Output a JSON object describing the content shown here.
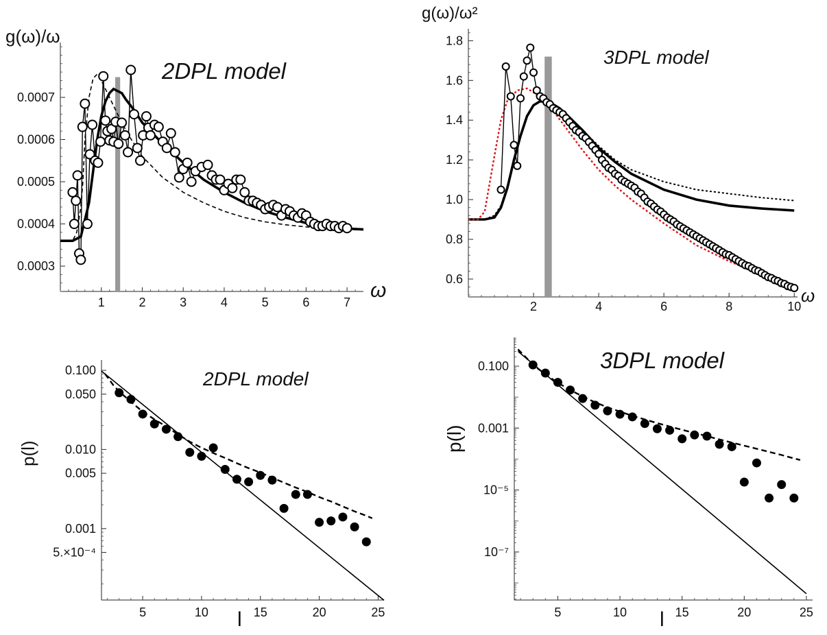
{
  "chart_data": [
    {
      "id": "tl",
      "type": "scatter",
      "title": "2DPL model",
      "xlabel": "ω",
      "ylabel": "g(ω)/ω",
      "xlim": [
        0,
        7.4
      ],
      "ylim": [
        0.00024,
        0.00083
      ],
      "xticks": [
        1,
        2,
        3,
        4,
        5,
        6,
        7
      ],
      "xtick_labels": [
        "1",
        "2",
        "3",
        "4",
        "5",
        "6",
        "7"
      ],
      "yticks": [
        0.0003,
        0.0004,
        0.0005,
        0.0006,
        0.0007
      ],
      "ytick_labels": [
        "0.0003",
        "0.0004",
        "0.0005",
        "0.0006",
        "0.0007"
      ],
      "vband": {
        "x": 1.4,
        "width": 0.12,
        "color": "#999999"
      },
      "series": [
        {
          "style": "dashed-thin",
          "x": [
            0,
            0.3,
            0.4,
            0.5,
            0.55,
            0.6,
            0.7,
            0.8,
            0.9,
            1.0,
            1.1,
            1.2,
            1.3,
            1.5,
            1.7,
            2.0,
            2.5,
            3.0,
            3.5,
            4.0,
            4.5,
            5.0,
            5.5,
            6.0,
            6.5,
            7.0,
            7.4
          ],
          "y": [
            0.00036,
            0.00036,
            0.00038,
            0.00044,
            0.0005,
            0.0006,
            0.0007,
            0.000745,
            0.000755,
            0.00074,
            0.00072,
            0.0007,
            0.00068,
            0.00064,
            0.000605,
            0.00056,
            0.00051,
            0.000475,
            0.00045,
            0.00043,
            0.000415,
            0.000405,
            0.000398,
            0.000393,
            0.00039,
            0.000387,
            0.000386
          ]
        },
        {
          "style": "solid-thick",
          "x": [
            0,
            0.3,
            0.5,
            0.7,
            0.9,
            1.0,
            1.1,
            1.2,
            1.3,
            1.4,
            1.5,
            1.6,
            1.8,
            2.0,
            2.5,
            3.0,
            3.5,
            4.0,
            4.5,
            5.0,
            5.5,
            6.0,
            6.5,
            7.0,
            7.4
          ],
          "y": [
            0.00036,
            0.00036,
            0.00037,
            0.00045,
            0.0006,
            0.000655,
            0.00069,
            0.00071,
            0.00072,
            0.000715,
            0.00071,
            0.000695,
            0.00067,
            0.00064,
            0.00059,
            0.000545,
            0.000505,
            0.000475,
            0.00045,
            0.00043,
            0.000415,
            0.000402,
            0.000394,
            0.000389,
            0.000387
          ]
        },
        {
          "style": "circles-joined",
          "x": [
            0.3,
            0.34,
            0.38,
            0.42,
            0.46,
            0.5,
            0.54,
            0.6,
            0.66,
            0.72,
            0.78,
            0.85,
            0.92,
            0.98,
            1.05,
            1.1,
            1.15,
            1.2,
            1.25,
            1.3,
            1.35,
            1.42,
            1.5,
            1.58,
            1.65,
            1.72,
            1.8,
            1.88,
            1.95,
            2.02,
            2.1,
            2.15,
            2.2,
            2.3,
            2.4,
            2.5,
            2.6,
            2.7,
            2.8,
            2.9,
            3.0,
            3.1,
            3.2,
            3.3,
            3.45,
            3.6,
            3.7,
            3.8,
            3.9,
            4.0,
            4.1,
            4.2,
            4.3,
            4.4,
            4.5,
            4.6,
            4.7,
            4.8,
            4.9,
            5.0,
            5.1,
            5.2,
            5.3,
            5.4,
            5.5,
            5.6,
            5.7,
            5.8,
            5.9,
            6.0,
            6.1,
            6.2,
            6.3,
            6.4,
            6.5,
            6.6,
            6.7,
            6.8,
            6.9,
            7.0
          ],
          "y": [
            0.000475,
            0.0004,
            0.000455,
            0.000515,
            0.00033,
            0.000315,
            0.00063,
            0.000685,
            0.0004,
            0.000565,
            0.000635,
            0.00055,
            0.000545,
            0.000595,
            0.00075,
            0.000645,
            0.00062,
            0.000598,
            0.000625,
            0.000595,
            0.000642,
            0.00059,
            0.00064,
            0.00061,
            0.00057,
            0.000765,
            0.00066,
            0.00058,
            0.00055,
            0.00061,
            0.000655,
            0.000628,
            0.00061,
            0.000635,
            0.00063,
            0.000595,
            0.00058,
            0.000615,
            0.00057,
            0.00051,
            0.00053,
            0.000545,
            0.0005,
            0.000525,
            0.000535,
            0.00054,
            0.000515,
            0.000505,
            0.000505,
            0.00048,
            0.000495,
            0.000485,
            0.000505,
            0.000505,
            0.000475,
            0.000455,
            0.000455,
            0.00045,
            0.000445,
            0.000435,
            0.00044,
            0.000445,
            0.00044,
            0.00042,
            0.000435,
            0.00043,
            0.00042,
            0.000415,
            0.000425,
            0.00042,
            0.000405,
            0.0004,
            0.000395,
            0.000395,
            0.0004,
            0.000395,
            0.000395,
            0.00039,
            0.000395,
            0.00039
          ]
        }
      ]
    },
    {
      "id": "tr",
      "type": "scatter",
      "title": "3DPL model",
      "xlabel": "ω",
      "ylabel": "g(ω)/ω²",
      "xlim": [
        0,
        10.1
      ],
      "ylim": [
        0.51,
        1.86
      ],
      "xticks": [
        2,
        4,
        6,
        8,
        10
      ],
      "xtick_labels": [
        "2",
        "4",
        "6",
        "8",
        "10"
      ],
      "yticks": [
        0.6,
        0.8,
        1.0,
        1.2,
        1.4,
        1.6,
        1.8
      ],
      "ytick_labels": [
        "0.6",
        "0.8",
        "1.0",
        "1.2",
        "1.4",
        "1.6",
        "1.8"
      ],
      "vband": {
        "x": 2.45,
        "width": 0.22,
        "color": "#999999"
      },
      "series": [
        {
          "style": "dotted-black",
          "x": [
            0,
            0.5,
            0.8,
            1.0,
            1.2,
            1.4,
            1.6,
            1.8,
            2.0,
            2.2,
            2.5,
            2.8,
            3.0,
            3.5,
            4.0,
            4.5,
            5.0,
            6.0,
            7.0,
            8.0,
            9.0,
            10.0
          ],
          "y": [
            0.9,
            0.9,
            0.92,
            0.97,
            1.07,
            1.2,
            1.32,
            1.42,
            1.475,
            1.495,
            1.49,
            1.45,
            1.42,
            1.35,
            1.27,
            1.2,
            1.15,
            1.09,
            1.05,
            1.03,
            1.01,
            0.995
          ]
        },
        {
          "style": "solid-thick",
          "x": [
            0,
            0.5,
            0.8,
            1.0,
            1.2,
            1.4,
            1.6,
            1.8,
            2.0,
            2.2,
            2.5,
            2.8,
            3.0,
            3.5,
            4.0,
            4.5,
            5.0,
            6.0,
            7.0,
            8.0,
            9.0,
            10.0
          ],
          "y": [
            0.9,
            0.9,
            0.91,
            0.96,
            1.06,
            1.2,
            1.32,
            1.42,
            1.475,
            1.495,
            1.49,
            1.46,
            1.43,
            1.35,
            1.26,
            1.19,
            1.13,
            1.05,
            1.0,
            0.97,
            0.955,
            0.945
          ]
        },
        {
          "style": "dotted-red",
          "x": [
            0,
            0.3,
            0.5,
            0.8,
            1.0,
            1.2,
            1.5,
            1.8,
            2.0,
            2.5,
            3.0,
            3.5,
            4.0,
            4.5,
            5.0,
            6.0,
            7.0,
            8.0,
            9.0,
            10.0
          ],
          "y": [
            0.9,
            0.9,
            0.94,
            1.22,
            1.4,
            1.5,
            1.55,
            1.56,
            1.54,
            1.47,
            1.36,
            1.25,
            1.15,
            1.07,
            1.0,
            0.88,
            0.77,
            0.69,
            0.62,
            0.555
          ]
        },
        {
          "style": "circles-joined",
          "x": [
            1.0,
            1.15,
            1.3,
            1.4,
            1.5,
            1.6,
            1.7,
            1.8,
            1.9,
            2.0,
            2.1,
            2.2,
            2.3,
            2.4,
            2.5,
            2.6,
            2.7,
            2.8,
            2.9,
            3.0,
            3.1,
            3.2,
            3.3,
            3.4,
            3.5,
            3.6,
            3.7,
            3.8,
            3.9,
            4.0,
            4.1,
            4.2,
            4.3,
            4.4,
            4.5,
            4.6,
            4.7,
            4.8,
            4.9,
            5.0,
            5.1,
            5.2,
            5.3,
            5.4,
            5.5,
            5.6,
            5.7,
            5.8,
            5.9,
            6.0,
            6.1,
            6.2,
            6.3,
            6.4,
            6.5,
            6.6,
            6.7,
            6.8,
            6.9,
            7.0,
            7.1,
            7.2,
            7.3,
            7.4,
            7.5,
            7.6,
            7.7,
            7.8,
            7.9,
            8.0,
            8.1,
            8.2,
            8.3,
            8.4,
            8.5,
            8.6,
            8.7,
            8.8,
            8.9,
            9.0,
            9.1,
            9.2,
            9.3,
            9.4,
            9.5,
            9.6,
            9.7,
            9.8,
            9.9,
            10.0
          ],
          "y": [
            1.05,
            1.67,
            1.52,
            1.275,
            1.17,
            1.51,
            1.62,
            1.7,
            1.765,
            1.64,
            1.55,
            1.52,
            1.51,
            1.49,
            1.48,
            1.46,
            1.45,
            1.44,
            1.43,
            1.41,
            1.39,
            1.37,
            1.35,
            1.34,
            1.32,
            1.31,
            1.29,
            1.27,
            1.25,
            1.23,
            1.2,
            1.18,
            1.16,
            1.15,
            1.13,
            1.12,
            1.1,
            1.09,
            1.08,
            1.07,
            1.06,
            1.04,
            1.03,
            1.01,
            0.99,
            0.98,
            0.965,
            0.95,
            0.94,
            0.925,
            0.91,
            0.9,
            0.89,
            0.875,
            0.865,
            0.855,
            0.845,
            0.835,
            0.825,
            0.815,
            0.805,
            0.795,
            0.785,
            0.775,
            0.765,
            0.755,
            0.745,
            0.735,
            0.725,
            0.72,
            0.71,
            0.7,
            0.69,
            0.68,
            0.67,
            0.665,
            0.655,
            0.645,
            0.64,
            0.63,
            0.62,
            0.61,
            0.605,
            0.595,
            0.59,
            0.58,
            0.575,
            0.565,
            0.56,
            0.555
          ]
        }
      ]
    },
    {
      "id": "bl",
      "type": "scatter",
      "title": "2DPL model",
      "xlabel": "l",
      "ylabel": "p(l)",
      "yscale": "log",
      "xlim": [
        1.5,
        25.5
      ],
      "ylim": [
        0.000125,
        0.135
      ],
      "xticks": [
        5,
        10,
        15,
        20,
        25
      ],
      "xtick_labels": [
        "5",
        "10",
        "15",
        "20",
        "25"
      ],
      "yticks": [
        0.0005,
        0.001,
        0.005,
        0.01,
        0.05,
        0.1
      ],
      "ytick_labels": [
        "5.×10⁻⁴",
        "0.001",
        "0.005",
        "0.010",
        "0.050",
        "0.100"
      ],
      "series": [
        {
          "style": "solid-thin",
          "x": [
            1.5,
            25.5
          ],
          "y": [
            0.098,
            0.000124
          ]
        },
        {
          "style": "dashed-thick",
          "x": [
            1.8,
            2.5,
            3,
            4,
            5,
            6,
            7,
            8,
            9,
            10,
            11,
            12,
            13,
            14,
            15,
            16,
            17,
            18,
            19,
            20,
            21,
            22,
            23,
            24,
            24.5
          ],
          "y": [
            0.09,
            0.065,
            0.054,
            0.04,
            0.03,
            0.024,
            0.0195,
            0.0155,
            0.0125,
            0.0105,
            0.009,
            0.0078,
            0.0067,
            0.0058,
            0.0051,
            0.0044,
            0.0038,
            0.0033,
            0.0029,
            0.0025,
            0.0022,
            0.0019,
            0.00165,
            0.00145,
            0.00135
          ]
        },
        {
          "style": "dots-filled",
          "x": [
            3,
            4,
            5,
            6,
            7,
            8,
            9,
            10,
            11,
            12,
            13,
            14,
            15,
            16,
            17,
            18,
            19,
            20,
            21,
            22,
            23,
            24
          ],
          "y": [
            0.052,
            0.043,
            0.028,
            0.021,
            0.018,
            0.0145,
            0.0092,
            0.0082,
            0.0105,
            0.0056,
            0.0042,
            0.0039,
            0.0047,
            0.0041,
            0.0018,
            0.0027,
            0.0027,
            0.0012,
            0.00125,
            0.0014,
            0.00105,
            0.00068
          ]
        }
      ]
    },
    {
      "id": "br",
      "type": "scatter",
      "title": "3DPL model",
      "xlabel": "l",
      "ylabel": "p(l)",
      "yscale": "log",
      "xlim": [
        1.5,
        25.5
      ],
      "ylim": [
        2.8e-09,
        0.85
      ],
      "xticks": [
        5,
        10,
        15,
        20,
        25
      ],
      "xtick_labels": [
        "5",
        "10",
        "15",
        "20",
        "25"
      ],
      "yticks": [
        1e-07,
        1e-05,
        0.001,
        0.1
      ],
      "ytick_labels": [
        "10⁻⁷",
        "10⁻⁵",
        "0.001",
        "0.100"
      ],
      "series": [
        {
          "style": "solid-thin",
          "x": [
            1.8,
            25
          ],
          "y": [
            0.3,
            4.5e-09
          ]
        },
        {
          "style": "dashed-thick",
          "x": [
            1.8,
            2.5,
            3,
            4,
            5,
            6,
            7,
            8,
            9,
            10,
            11,
            12,
            13,
            14,
            15,
            16,
            17,
            18,
            19,
            20,
            21,
            22,
            23,
            24,
            24.5
          ],
          "y": [
            0.35,
            0.18,
            0.11,
            0.055,
            0.029,
            0.017,
            0.0105,
            0.0068,
            0.0047,
            0.0034,
            0.0025,
            0.0019,
            0.00145,
            0.00112,
            0.00088,
            0.0007,
            0.00055,
            0.00043,
            0.00034,
            0.00027,
            0.000215,
            0.00017,
            0.000135,
            0.000105,
            9.3e-05
          ]
        },
        {
          "style": "dots-filled",
          "x": [
            3,
            4,
            5,
            6,
            7,
            8,
            9,
            10,
            11,
            12,
            13,
            14,
            15,
            16,
            17,
            18,
            19,
            20,
            21,
            22,
            23,
            24
          ],
          "y": [
            0.11,
            0.06,
            0.03,
            0.017,
            0.009,
            0.0055,
            0.0036,
            0.0028,
            0.0023,
            0.0014,
            0.00095,
            0.00085,
            0.00045,
            0.0006,
            0.00055,
            0.0003,
            0.00025,
            1.8e-05,
            7.5e-05,
            5.5e-06,
            1.5e-05,
            5.5e-06
          ]
        }
      ]
    }
  ]
}
